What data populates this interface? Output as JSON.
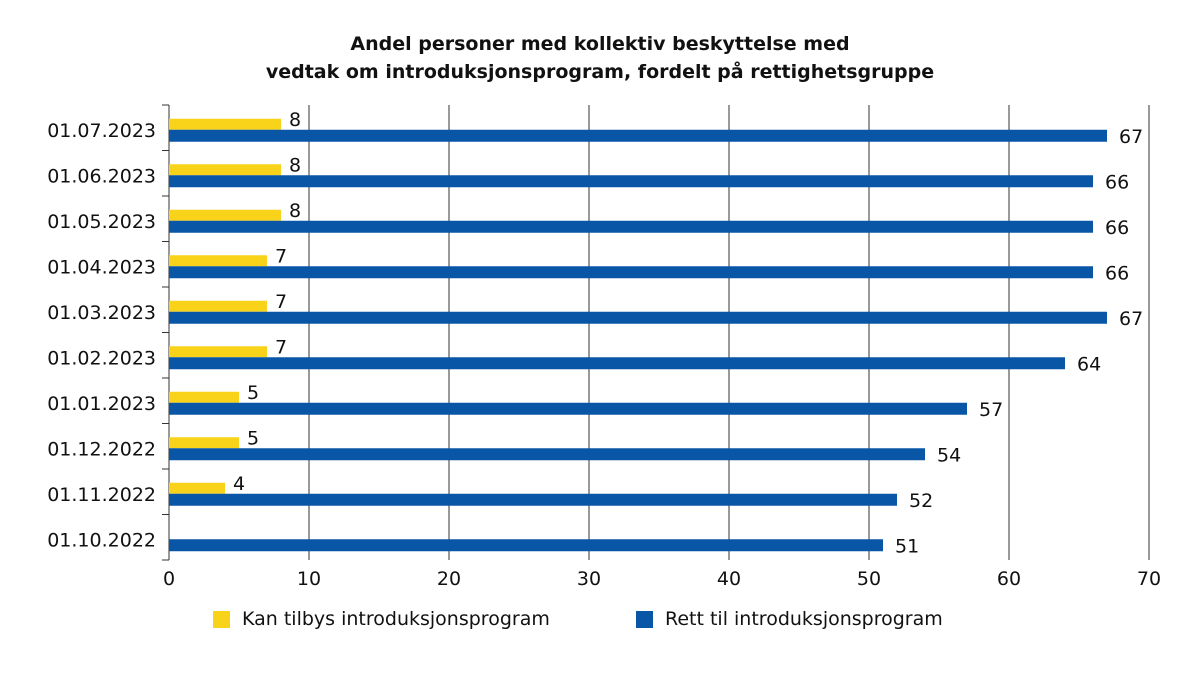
{
  "chart_data": {
    "type": "bar",
    "orientation": "horizontal",
    "title_lines": [
      "Andel personer med kollektiv beskyttelse med",
      "vedtak om introduksjonsprogram, fordelt på rettighetsgruppe"
    ],
    "categories": [
      "01.07.2023",
      "01.06.2023",
      "01.05.2023",
      "01.04.2023",
      "01.03.2023",
      "01.02.2023",
      "01.01.2023",
      "01.12.2022",
      "01.11.2022",
      "01.10.2022"
    ],
    "series": [
      {
        "name": "Kan tilbys introduksjonsprogram",
        "color": "#F9D21A",
        "values": [
          8,
          8,
          8,
          7,
          7,
          7,
          5,
          5,
          4,
          null
        ]
      },
      {
        "name": "Rett til introduksjonsprogram",
        "color": "#0A56A6",
        "values": [
          67,
          66,
          66,
          66,
          67,
          64,
          57,
          54,
          52,
          51
        ]
      }
    ],
    "xlim": [
      0,
      70
    ],
    "xticks": [
      0,
      10,
      20,
      30,
      40,
      50,
      60,
      70
    ],
    "grid": "vertical",
    "legend": "bottom",
    "xlabel": "",
    "ylabel": ""
  }
}
